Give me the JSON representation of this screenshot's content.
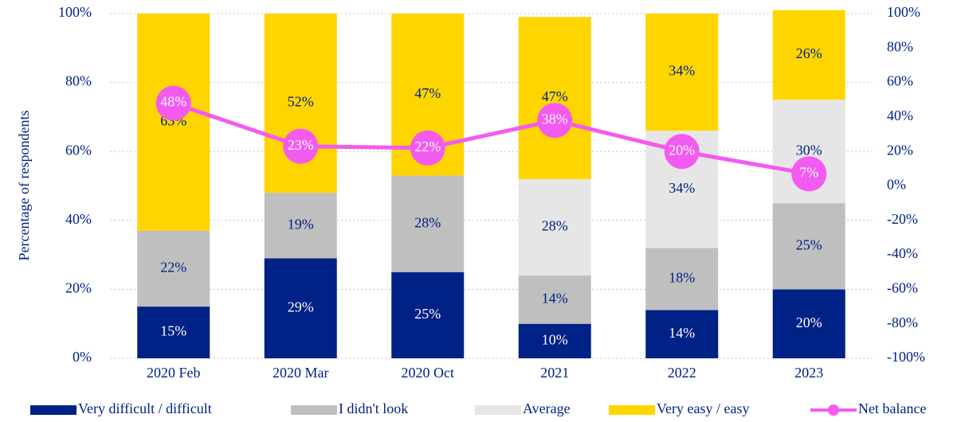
{
  "chart_data": {
    "type": "stacked-bar-line",
    "y_label": "Percentage of respondents",
    "categories": [
      "2020 Feb",
      "2020 Mar",
      "2020 Oct",
      "2021",
      "2022",
      "2023"
    ],
    "series": [
      {
        "name": "Very difficult / difficult",
        "color": "#002185",
        "label_color": "#ffffff",
        "values": [
          15,
          29,
          25,
          10,
          14,
          20
        ],
        "value_labels": [
          "15%",
          "29%",
          "25%",
          "10%",
          "14%",
          "20%"
        ]
      },
      {
        "name": "I didn't look",
        "color": "#bfbfbf",
        "label_color": "#002185",
        "values": [
          22,
          19,
          28,
          14,
          18,
          25
        ],
        "value_labels": [
          "22%",
          "19%",
          "28%",
          "14%",
          "18%",
          "25%"
        ]
      },
      {
        "name": "Average",
        "color": "#e6e6e6",
        "label_color": "#002185",
        "values": [
          null,
          null,
          null,
          28,
          34,
          30
        ],
        "value_labels": [
          null,
          null,
          null,
          "28%",
          "34%",
          "30%"
        ]
      },
      {
        "name": "Very easy / easy",
        "color": "#ffd500",
        "label_color": "#002185",
        "values": [
          63,
          52,
          47,
          47,
          34,
          26
        ],
        "value_labels": [
          "63%",
          "52%",
          "47%",
          "47%",
          "34%",
          "26%"
        ]
      },
      {
        "name": "Net balance",
        "type": "line",
        "axis": "y2",
        "color": "#f35bf0",
        "label_color": "#ffffff",
        "values": [
          48,
          23,
          22,
          38,
          20,
          7
        ],
        "value_labels": [
          "48%",
          "23%",
          "22%",
          "38%",
          "20%",
          "7%"
        ]
      }
    ],
    "ylim": [
      0,
      100
    ],
    "yticks": [
      {
        "value": 0,
        "label": "0%"
      },
      {
        "value": 20,
        "label": "20%"
      },
      {
        "value": 40,
        "label": "40%"
      },
      {
        "value": 60,
        "label": "60%"
      },
      {
        "value": 80,
        "label": "80%"
      },
      {
        "value": 100,
        "label": "100%"
      }
    ],
    "y2lim": [
      -100,
      100
    ],
    "y2ticks": [
      {
        "value": -100,
        "label": "-100%"
      },
      {
        "value": -80,
        "label": "-80%"
      },
      {
        "value": -60,
        "label": "-60%"
      },
      {
        "value": -40,
        "label": "-40%"
      },
      {
        "value": -20,
        "label": "-20%"
      },
      {
        "value": 0,
        "label": "0%"
      },
      {
        "value": 20,
        "label": "20%"
      },
      {
        "value": 40,
        "label": "40%"
      },
      {
        "value": 60,
        "label": "60%"
      },
      {
        "value": 80,
        "label": "80%"
      },
      {
        "value": 100,
        "label": "100%"
      }
    ],
    "grid": true,
    "legend": "bottom"
  }
}
